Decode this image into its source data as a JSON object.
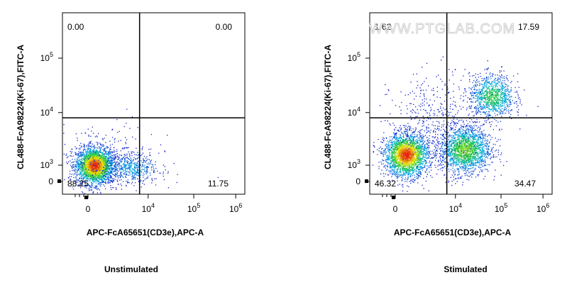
{
  "watermark": "WWW.PTGLAB.COM",
  "chart_data": [
    {
      "type": "scatter",
      "caption": "Unstimulated",
      "xlabel": "APC-FcA65651(CD3e),APC-A",
      "ylabel": "CL488-FcA98224(Ki-67),FITC-A",
      "x_ticks": [
        {
          "base": "0",
          "exp": ""
        },
        {
          "base": "10",
          "exp": "4"
        },
        {
          "base": "10",
          "exp": "5"
        },
        {
          "base": "10",
          "exp": "6"
        }
      ],
      "y_ticks": [
        {
          "base": "0",
          "exp": ""
        },
        {
          "base": "10",
          "exp": "3"
        },
        {
          "base": "10",
          "exp": "4"
        },
        {
          "base": "10",
          "exp": "5"
        }
      ],
      "quadrants": {
        "upper_left": "0.00",
        "upper_right": "0.00",
        "lower_left": "88.25",
        "lower_right": "11.75"
      },
      "gates": {
        "x": 3.8,
        "y": 3.9
      },
      "populations": [
        {
          "x": 2.75,
          "y": 3.0,
          "sx": 0.22,
          "sy": 0.17,
          "n": 2600,
          "peak": 1.0
        },
        {
          "x": 3.6,
          "y": 2.95,
          "sx": 0.32,
          "sy": 0.15,
          "n": 500,
          "peak": 0.25
        },
        {
          "x": 3.0,
          "y": 3.1,
          "sx": 0.6,
          "sy": 0.35,
          "n": 250,
          "peak": 0.05
        }
      ]
    },
    {
      "type": "scatter",
      "caption": "Stimulated",
      "xlabel": "APC-FcA65651(CD3e),APC-A",
      "ylabel": "CL488-FcA98224(Ki-67),FITC-A",
      "x_ticks": [
        {
          "base": "0",
          "exp": ""
        },
        {
          "base": "10",
          "exp": "4"
        },
        {
          "base": "10",
          "exp": "5"
        },
        {
          "base": "10",
          "exp": "6"
        }
      ],
      "y_ticks": [
        {
          "base": "0",
          "exp": ""
        },
        {
          "base": "10",
          "exp": "3"
        },
        {
          "base": "10",
          "exp": "4"
        },
        {
          "base": "10",
          "exp": "5"
        }
      ],
      "quadrants": {
        "upper_left": "1.62",
        "upper_right": "17.59",
        "lower_left": "46.32",
        "lower_right": "34.47"
      },
      "gates": {
        "x": 3.8,
        "y": 3.9
      },
      "populations": [
        {
          "x": 2.85,
          "y": 3.2,
          "sx": 0.25,
          "sy": 0.2,
          "n": 2400,
          "peak": 1.0
        },
        {
          "x": 4.2,
          "y": 3.3,
          "sx": 0.28,
          "sy": 0.22,
          "n": 1800,
          "peak": 0.6
        },
        {
          "x": 4.8,
          "y": 4.3,
          "sx": 0.25,
          "sy": 0.2,
          "n": 1000,
          "peak": 0.5
        },
        {
          "x": 3.6,
          "y": 3.8,
          "sx": 0.55,
          "sy": 0.45,
          "n": 500,
          "peak": 0.05
        }
      ]
    }
  ]
}
